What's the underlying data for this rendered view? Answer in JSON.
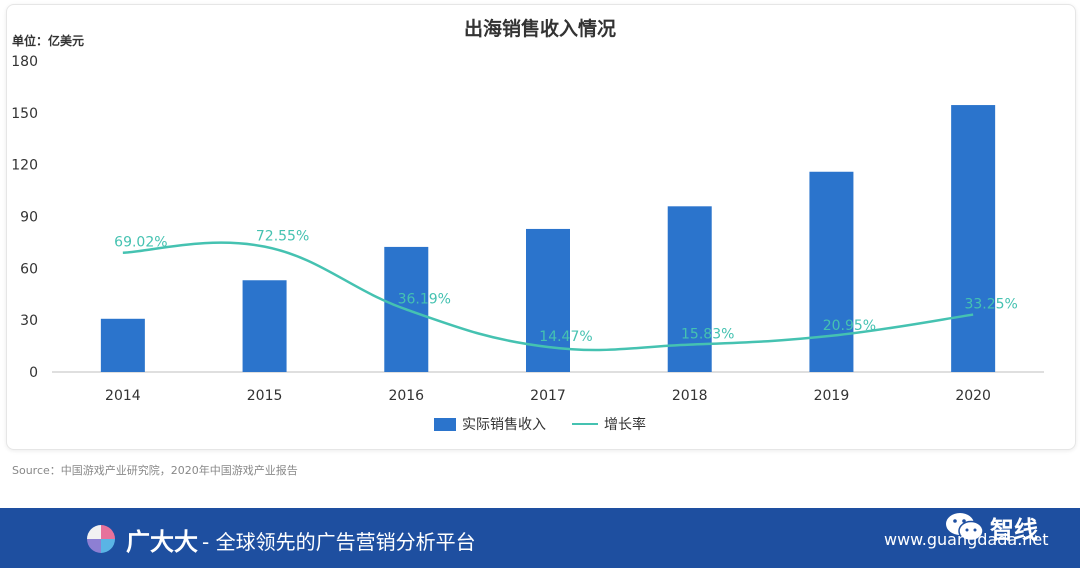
{
  "chart_data": {
    "type": "bar",
    "title": "出海销售收入情况",
    "unit_label": "单位：亿美元",
    "categories": [
      "2014",
      "2015",
      "2016",
      "2017",
      "2018",
      "2019",
      "2020"
    ],
    "ylim": [
      0,
      180
    ],
    "yticks": [
      0,
      30,
      60,
      90,
      120,
      150,
      180
    ],
    "series": [
      {
        "name": "实际销售收入",
        "type": "bar",
        "color": "#2b74cc",
        "values": [
          30.8,
          53.1,
          72.4,
          82.8,
          95.9,
          115.9,
          154.5
        ]
      },
      {
        "name": "增长率",
        "type": "line",
        "color": "#45c2b1",
        "values": [
          69.02,
          72.55,
          36.19,
          14.47,
          15.83,
          20.95,
          33.25
        ],
        "labels": [
          "69.02%",
          "72.55%",
          "36.19%",
          "14.47%",
          "15.83%",
          "20.95%",
          "33.25%"
        ]
      }
    ],
    "legend_position": "bottom",
    "grid": false
  },
  "source": "Source：中国游戏产业研究院，2020年中国游戏产业报告",
  "banner": {
    "brand": "广大大",
    "slogan": "- 全球领先的广告营销分析平台",
    "wechat_name": "智线",
    "url": "www.guangdada.net",
    "background": "#1e4fa0"
  }
}
